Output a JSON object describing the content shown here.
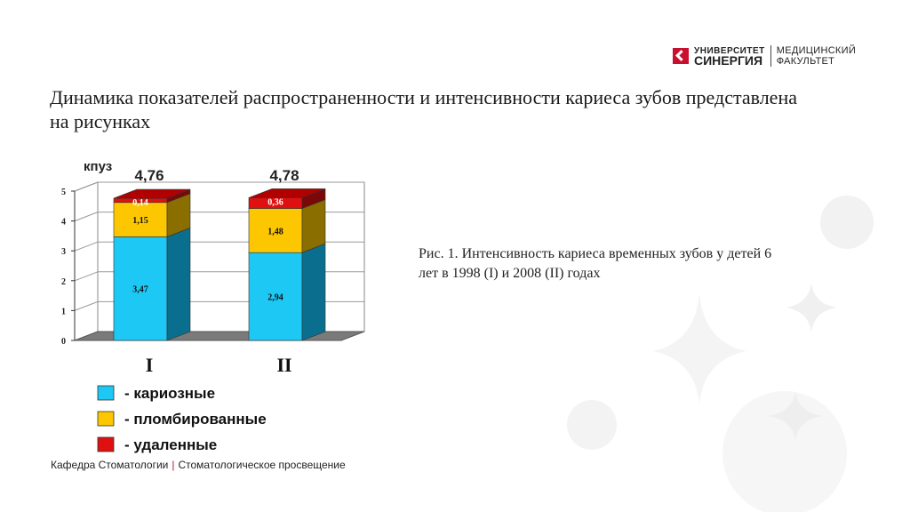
{
  "header": {
    "logo_univ": "УНИВЕРСИТЕТ",
    "logo_synergy": "СИНЕРГИЯ",
    "logo_fac1": "МЕДИЦИНСКИЙ",
    "logo_fac2": "ФАКУЛЬТЕТ"
  },
  "title": "Динамика показателей распространенности и интенсивности кариеса зубов представлена на рисунках",
  "caption": "Рис. 1. Интенсивность кариеса временных зубов у детей 6 лет в 1998 (I) и 2008 (II) годах",
  "footer": {
    "left": "Кафедра Стоматологии",
    "right": "Стоматологическое просвещение"
  },
  "chart_data": {
    "type": "bar",
    "stacked": true,
    "ylabel": "кпуз",
    "ylim": [
      0,
      5
    ],
    "yticks": [
      "0",
      "1",
      "2",
      "3",
      "4",
      "5"
    ],
    "categories": [
      "I",
      "II"
    ],
    "totals": [
      "4,76",
      "4,78"
    ],
    "series": [
      {
        "name": "- кариозные",
        "values": [
          3.47,
          2.94
        ],
        "labels": [
          "3,47",
          "2,94"
        ],
        "color": "#1ec8f5",
        "side": "#0a6f8e"
      },
      {
        "name": "- пломбированные",
        "values": [
          1.15,
          1.48
        ],
        "labels": [
          "1,15",
          "1,48"
        ],
        "color": "#fcc600",
        "side": "#8a6e00"
      },
      {
        "name": "- удаленные",
        "values": [
          0.14,
          0.36
        ],
        "labels": [
          "0,14",
          "0,36"
        ],
        "color": "#e01010",
        "side": "#7a0808"
      }
    ],
    "legend": "bottom-left",
    "grid": true
  }
}
